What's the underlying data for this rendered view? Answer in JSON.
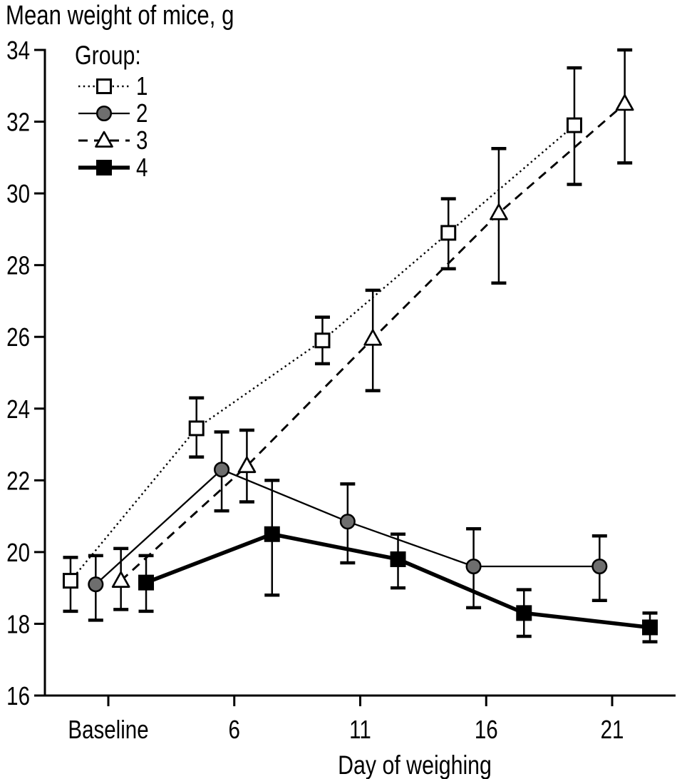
{
  "chart_data": {
    "type": "line",
    "title": "Mean weight of mice, g",
    "ylabel": "Mean weight of mice, g",
    "xlabel": "Day of weighing",
    "legend_title": "Group:",
    "legend_position": "top-left-inside",
    "grid": false,
    "background": "#ffffff",
    "axis_color": "#000000",
    "x_ticks": [
      {
        "value": 1,
        "label": "Baseline"
      },
      {
        "value": 6,
        "label": "6"
      },
      {
        "value": 11,
        "label": "11"
      },
      {
        "value": 16,
        "label": "16"
      },
      {
        "value": 21,
        "label": "21"
      }
    ],
    "x_range_days": [
      -1.5,
      23.5
    ],
    "y_ticks": [
      34,
      32,
      30,
      28,
      26,
      24,
      22,
      20,
      18,
      16
    ],
    "y_range": [
      16,
      34
    ],
    "categories": [
      "Baseline",
      "6",
      "11",
      "16",
      "21"
    ],
    "category_days": [
      1,
      6,
      11,
      16,
      21
    ],
    "error_bars": "shown, symmetric caps",
    "series": [
      {
        "name": "1",
        "marker": "open-square",
        "line": "dotted",
        "x_offset_days": -1.5,
        "color": "#000000",
        "fill": "#ffffff",
        "values": [
          19.2,
          23.45,
          25.9,
          28.9,
          31.9
        ],
        "err_low": [
          18.35,
          22.65,
          25.25,
          27.9,
          30.25
        ],
        "err_high": [
          19.85,
          24.3,
          26.55,
          29.85,
          33.5
        ]
      },
      {
        "name": "2",
        "marker": "filled-circle",
        "line": "solid-thin",
        "x_offset_days": -0.5,
        "color": "#000000",
        "fill": "#6e6e6e",
        "values": [
          19.1,
          22.3,
          20.85,
          19.6,
          19.6
        ],
        "err_low": [
          18.1,
          21.15,
          19.7,
          18.45,
          18.65
        ],
        "err_high": [
          19.9,
          23.35,
          21.9,
          20.65,
          20.45
        ]
      },
      {
        "name": "3",
        "marker": "open-triangle",
        "line": "dashed",
        "x_offset_days": 0.5,
        "color": "#000000",
        "fill": "#ffffff",
        "values": [
          19.2,
          22.4,
          25.95,
          29.45,
          32.5
        ],
        "err_low": [
          18.4,
          21.4,
          24.5,
          27.5,
          30.85
        ],
        "err_high": [
          20.1,
          23.4,
          27.3,
          31.25,
          34.0
        ]
      },
      {
        "name": "4",
        "marker": "filled-square",
        "line": "solid-thick",
        "x_offset_days": 1.5,
        "color": "#000000",
        "fill": "#000000",
        "values": [
          19.15,
          20.5,
          19.8,
          18.3,
          17.9
        ],
        "err_low": [
          18.35,
          18.8,
          19.0,
          17.65,
          17.5
        ],
        "err_high": [
          19.9,
          22.0,
          20.5,
          18.95,
          18.3
        ]
      }
    ]
  }
}
